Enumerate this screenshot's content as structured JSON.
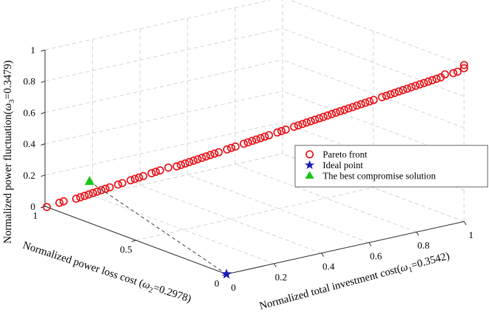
{
  "chart_data": {
    "type": "scatter3d",
    "axes": {
      "x": {
        "label_prefix": "Normalized total investment cost(",
        "weight_symbol": "ω",
        "weight_sub": "1",
        "weight_value": "=0.3542)",
        "range": [
          0,
          1
        ],
        "ticks": [
          "0",
          "0.2",
          "0.4",
          "0.6",
          "0.8",
          "1"
        ]
      },
      "y": {
        "label_prefix": "Normalized power loss cost (",
        "weight_symbol": "ω",
        "weight_sub": "2",
        "weight_value": "=0.2978)",
        "range": [
          0,
          1
        ],
        "ticks": [
          "0",
          "0.5",
          "1"
        ]
      },
      "z": {
        "label_prefix": "Normalized power fluctuation(",
        "weight_symbol": "ω",
        "weight_sub": "3",
        "weight_value": "=0.3479)",
        "range": [
          0,
          1
        ],
        "ticks": [
          "0",
          "0.2",
          "0.4",
          "0.6",
          "0.8",
          "1"
        ]
      }
    },
    "grid": true,
    "legend": {
      "placement": "right",
      "entries": [
        {
          "label": "Pareto front",
          "marker": "circle",
          "color": "#e8141a"
        },
        {
          "label": "Ideal point",
          "marker": "star",
          "color": "#1a1ab8"
        },
        {
          "label": "The best compromise solution",
          "marker": "triangle",
          "color": "#18c818"
        }
      ]
    },
    "ideal_point": [
      0,
      0,
      0
    ],
    "best_compromise": [
      0.05,
      0.82,
      0.22
    ],
    "pareto_front": {
      "color": "#e8141a",
      "points": [
        [
          0.0,
          0.99,
          0.0
        ],
        [
          0.03,
          0.96,
          0.03
        ],
        [
          0.04,
          0.95,
          0.04
        ],
        [
          0.07,
          0.92,
          0.06
        ],
        [
          0.09,
          0.9,
          0.08
        ],
        [
          0.1,
          0.89,
          0.09
        ],
        [
          0.11,
          0.88,
          0.1
        ],
        [
          0.12,
          0.87,
          0.11
        ],
        [
          0.13,
          0.86,
          0.12
        ],
        [
          0.14,
          0.85,
          0.13
        ],
        [
          0.17,
          0.82,
          0.16
        ],
        [
          0.18,
          0.81,
          0.17
        ],
        [
          0.21,
          0.78,
          0.2
        ],
        [
          0.22,
          0.77,
          0.21
        ],
        [
          0.23,
          0.76,
          0.22
        ],
        [
          0.25,
          0.74,
          0.24
        ],
        [
          0.27,
          0.72,
          0.26
        ],
        [
          0.29,
          0.7,
          0.28
        ],
        [
          0.31,
          0.68,
          0.29
        ],
        [
          0.32,
          0.67,
          0.3
        ],
        [
          0.33,
          0.66,
          0.31
        ],
        [
          0.34,
          0.65,
          0.32
        ],
        [
          0.35,
          0.64,
          0.33
        ],
        [
          0.37,
          0.62,
          0.35
        ],
        [
          0.39,
          0.6,
          0.37
        ],
        [
          0.4,
          0.59,
          0.38
        ],
        [
          0.41,
          0.58,
          0.39
        ],
        [
          0.43,
          0.56,
          0.41
        ],
        [
          0.45,
          0.54,
          0.43
        ],
        [
          0.47,
          0.52,
          0.45
        ],
        [
          0.48,
          0.51,
          0.46
        ],
        [
          0.49,
          0.5,
          0.47
        ],
        [
          0.5,
          0.49,
          0.48
        ],
        [
          0.51,
          0.48,
          0.49
        ],
        [
          0.53,
          0.46,
          0.51
        ],
        [
          0.55,
          0.44,
          0.53
        ],
        [
          0.57,
          0.42,
          0.55
        ],
        [
          0.59,
          0.4,
          0.57
        ],
        [
          0.61,
          0.38,
          0.59
        ],
        [
          0.62,
          0.37,
          0.6
        ],
        [
          0.63,
          0.36,
          0.61
        ],
        [
          0.64,
          0.35,
          0.62
        ],
        [
          0.65,
          0.34,
          0.63
        ],
        [
          0.66,
          0.33,
          0.64
        ],
        [
          0.67,
          0.32,
          0.65
        ],
        [
          0.69,
          0.3,
          0.67
        ],
        [
          0.7,
          0.29,
          0.68
        ],
        [
          0.71,
          0.28,
          0.69
        ],
        [
          0.72,
          0.27,
          0.7
        ],
        [
          0.73,
          0.26,
          0.71
        ],
        [
          0.74,
          0.25,
          0.72
        ],
        [
          0.76,
          0.23,
          0.74
        ],
        [
          0.78,
          0.21,
          0.76
        ],
        [
          0.8,
          0.19,
          0.78
        ],
        [
          0.81,
          0.18,
          0.79
        ],
        [
          0.82,
          0.17,
          0.8
        ],
        [
          0.83,
          0.16,
          0.81
        ],
        [
          0.84,
          0.15,
          0.82
        ],
        [
          0.86,
          0.13,
          0.84
        ],
        [
          0.87,
          0.12,
          0.85
        ],
        [
          0.88,
          0.11,
          0.86
        ],
        [
          0.89,
          0.1,
          0.87
        ],
        [
          0.9,
          0.09,
          0.88
        ],
        [
          0.91,
          0.08,
          0.89
        ],
        [
          0.92,
          0.07,
          0.9
        ],
        [
          0.93,
          0.06,
          0.91
        ],
        [
          0.97,
          0.02,
          0.95
        ],
        [
          0.98,
          0.01,
          0.96
        ],
        [
          1.0,
          0.0,
          0.98
        ],
        [
          1.0,
          0.0,
          1.0
        ],
        [
          0.95,
          0.04,
          0.94
        ],
        [
          0.85,
          0.14,
          0.83
        ],
        [
          0.68,
          0.31,
          0.66
        ],
        [
          0.52,
          0.47,
          0.5
        ],
        [
          0.36,
          0.63,
          0.34
        ],
        [
          0.2,
          0.79,
          0.19
        ],
        [
          0.08,
          0.91,
          0.07
        ],
        [
          0.15,
          0.84,
          0.14
        ],
        [
          0.44,
          0.55,
          0.42
        ],
        [
          0.6,
          0.39,
          0.58
        ],
        [
          0.77,
          0.22,
          0.75
        ],
        [
          0.94,
          0.05,
          0.92
        ],
        [
          0.26,
          0.73,
          0.25
        ],
        [
          0.38,
          0.61,
          0.36
        ],
        [
          0.56,
          0.43,
          0.54
        ],
        [
          0.75,
          0.24,
          0.73
        ]
      ]
    }
  }
}
